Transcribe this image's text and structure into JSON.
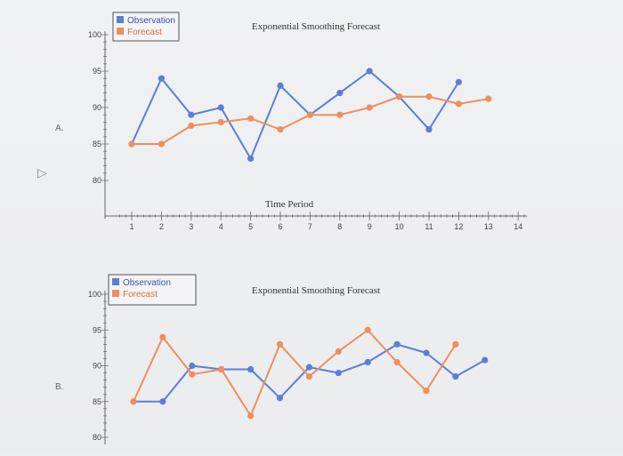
{
  "colors": {
    "observation": "#5a7fd6",
    "forecast": "#ee8f5c",
    "axis": "#666666"
  },
  "option_labels": [
    "A.",
    "B."
  ],
  "chart_data": [
    {
      "type": "line",
      "option": "A.",
      "title": "Exponential Smoothing Forecast",
      "xlabel": "Time Period",
      "ylabel": "",
      "legend": [
        "Observation",
        "Forecast"
      ],
      "legend_position": "top-left",
      "yticks": [
        100,
        95,
        90,
        85,
        80
      ],
      "xticks": [
        1,
        2,
        3,
        4,
        5,
        6,
        7,
        8,
        9,
        10,
        11,
        12,
        13,
        14
      ],
      "ylim": [
        75,
        103
      ],
      "xlim": [
        0.5,
        14.5
      ],
      "series": [
        {
          "name": "Observation",
          "x": [
            1,
            2,
            3,
            4,
            5,
            6,
            7,
            8,
            9,
            10,
            11,
            12
          ],
          "values": [
            85,
            94,
            89,
            90,
            83,
            93,
            89,
            92,
            95,
            91.5,
            87,
            93.5
          ]
        },
        {
          "name": "Forecast",
          "x": [
            1,
            2,
            3,
            4,
            5,
            6,
            7,
            8,
            9,
            10,
            11,
            12,
            13
          ],
          "values": [
            85,
            85,
            87.5,
            88,
            88.5,
            87,
            89,
            89,
            90,
            91.5,
            91.5,
            90.5,
            91.2
          ]
        }
      ]
    },
    {
      "type": "line",
      "option": "B.",
      "title": "Exponential Smoothing Forecast",
      "xlabel": "",
      "ylabel": "",
      "legend": [
        "Observation",
        "Forecast"
      ],
      "legend_position": "top-left",
      "yticks": [
        100,
        95,
        90,
        85,
        80
      ],
      "xticks": [],
      "ylim": [
        78,
        103
      ],
      "xlim": [
        0.5,
        14.5
      ],
      "series": [
        {
          "name": "Observation",
          "x": [
            1,
            2,
            3,
            4,
            5,
            6,
            7,
            8,
            9,
            10,
            11,
            12,
            13
          ],
          "values": [
            85,
            85,
            90,
            89.5,
            89.5,
            85.5,
            89.8,
            89,
            90.5,
            93,
            91.8,
            88.5,
            90.8
          ]
        },
        {
          "name": "Forecast",
          "x": [
            1,
            2,
            3,
            4,
            5,
            6,
            7,
            8,
            9,
            10,
            11,
            12
          ],
          "values": [
            85,
            94,
            88.8,
            89.5,
            83,
            93,
            88.5,
            92,
            95,
            90.5,
            86.5,
            93
          ]
        }
      ]
    }
  ]
}
